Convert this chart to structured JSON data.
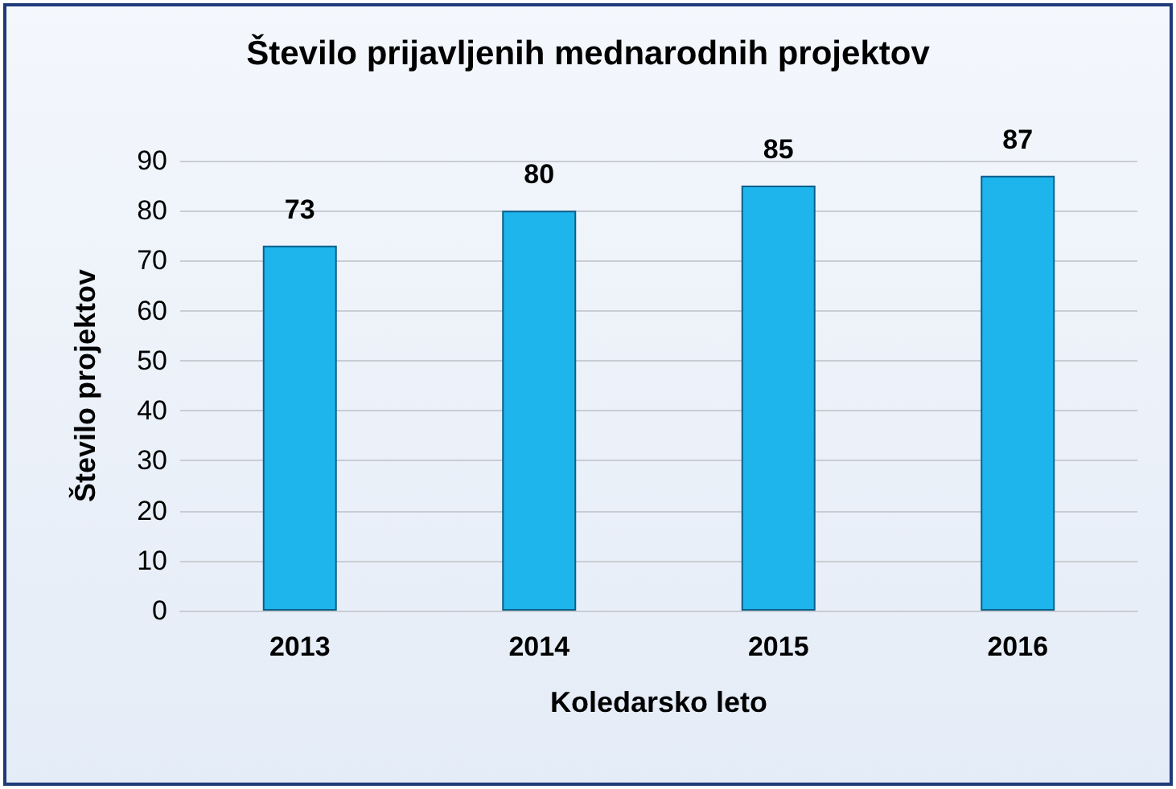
{
  "chart_data": {
    "type": "bar",
    "title": "Število prijavljenih mednarodnih projektov",
    "xlabel": "Koledarsko leto",
    "ylabel": "Število projektov",
    "categories": [
      "2013",
      "2014",
      "2015",
      "2016"
    ],
    "values": [
      73,
      80,
      85,
      87
    ],
    "color": "#1eb4ec",
    "ylim": [
      0,
      90
    ],
    "yticks": [
      0,
      10,
      20,
      30,
      40,
      50,
      60,
      70,
      80,
      90
    ],
    "grid": "y",
    "data_labels": true
  }
}
